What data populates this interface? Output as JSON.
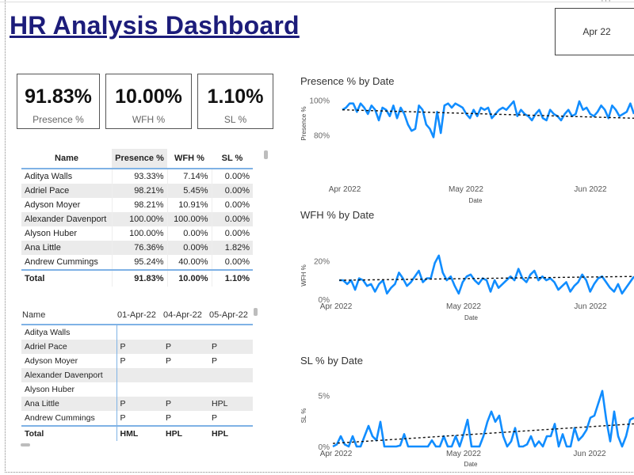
{
  "title": "HR Analysis Dashboard",
  "slicer_value": "Apr 22",
  "kpis": [
    {
      "value": "91.83%",
      "label": "Presence %"
    },
    {
      "value": "10.00%",
      "label": "WFH %"
    },
    {
      "value": "1.10%",
      "label": "SL %"
    }
  ],
  "table1": {
    "headers": [
      "Name",
      "Presence %",
      "WFH %",
      "SL %"
    ],
    "rows": [
      [
        "Aditya Walls",
        "93.33%",
        "7.14%",
        "0.00%"
      ],
      [
        "Adriel Pace",
        "98.21%",
        "5.45%",
        "0.00%"
      ],
      [
        "Adyson Moyer",
        "98.21%",
        "10.91%",
        "0.00%"
      ],
      [
        "Alexander Davenport",
        "100.00%",
        "100.00%",
        "0.00%"
      ],
      [
        "Alyson Huber",
        "100.00%",
        "0.00%",
        "0.00%"
      ],
      [
        "Ana Little",
        "76.36%",
        "0.00%",
        "1.82%"
      ],
      [
        "Andrew Cummings",
        "95.24%",
        "40.00%",
        "0.00%"
      ]
    ],
    "total": [
      "Total",
      "91.83%",
      "10.00%",
      "1.10%"
    ]
  },
  "table2": {
    "headers": [
      "Name",
      "01-Apr-22",
      "04-Apr-22",
      "05-Apr-22"
    ],
    "rows": [
      [
        "Aditya Walls",
        "",
        "",
        ""
      ],
      [
        "Adriel Pace",
        "P",
        "P",
        "P"
      ],
      [
        "Adyson Moyer",
        "P",
        "P",
        "P"
      ],
      [
        "Alexander Davenport",
        "",
        "",
        ""
      ],
      [
        "Alyson Huber",
        "",
        "",
        ""
      ],
      [
        "Ana Little",
        "P",
        "P",
        "HPL"
      ],
      [
        "Andrew Cummings",
        "P",
        "P",
        "P"
      ]
    ],
    "total": [
      "Total",
      "HML",
      "HPL",
      "HPL"
    ]
  },
  "chart_data": [
    {
      "type": "line",
      "title": "Presence % by Date",
      "xlabel": "Date",
      "ylabel": "Presence %",
      "x_ticks": [
        "Apr 2022",
        "May 2022",
        "Jun 2022"
      ],
      "y_ticks": [
        "100%",
        "80%"
      ],
      "ylim": [
        75,
        102
      ],
      "trend": [
        95,
        91
      ],
      "values": [
        95,
        96,
        98,
        98,
        94,
        98,
        96,
        93,
        97,
        95,
        90,
        96,
        95,
        92,
        97,
        91,
        96,
        93,
        88,
        85,
        86,
        97,
        95,
        88,
        86,
        82,
        94,
        84,
        97,
        98,
        96,
        98,
        97,
        96,
        93,
        91,
        95,
        92,
        96,
        95,
        96,
        91,
        93,
        95,
        96,
        95,
        97,
        99,
        92,
        95,
        93,
        92,
        90,
        93,
        95,
        91,
        90,
        95,
        93,
        92,
        90,
        93,
        95,
        92,
        93,
        99,
        95,
        96,
        93,
        92,
        94,
        97,
        95,
        91,
        97,
        95,
        92,
        93,
        94,
        98,
        93
      ]
    },
    {
      "type": "line",
      "title": "WFH % by Date",
      "xlabel": "Date",
      "ylabel": "WFH %",
      "x_ticks": [
        "Apr 2022",
        "May 2022",
        "Jun 2022"
      ],
      "y_ticks": [
        "20%",
        "0%"
      ],
      "ylim": [
        0,
        25
      ],
      "trend": [
        10,
        12
      ],
      "values": [
        10,
        10,
        8,
        10,
        5,
        11,
        10,
        7,
        8,
        4,
        8,
        10,
        3,
        6,
        8,
        14,
        11,
        7,
        9,
        12,
        15,
        9,
        11,
        11,
        19,
        23,
        14,
        10,
        12,
        7,
        3,
        9,
        12,
        13,
        10,
        8,
        11,
        10,
        4,
        10,
        6,
        8,
        10,
        12,
        10,
        16,
        11,
        9,
        13,
        15,
        10,
        12,
        10,
        11,
        9,
        5,
        7,
        9,
        4,
        7,
        9,
        13,
        10,
        4,
        8,
        11,
        12,
        9,
        6,
        4,
        8,
        3,
        6,
        9,
        12
      ]
    },
    {
      "type": "line",
      "title": "SL % by Date",
      "xlabel": "Date",
      "ylabel": "SL %",
      "x_ticks": [
        "Apr 2022",
        "May 2022",
        "Jun 2022"
      ],
      "y_ticks": [
        "5%",
        "0%"
      ],
      "ylim": [
        0,
        6
      ],
      "trend": [
        0.3,
        2.2
      ],
      "values": [
        0,
        0.2,
        1,
        0.2,
        0,
        1,
        0,
        0,
        1,
        2,
        1,
        0.6,
        2.4,
        0,
        0,
        0,
        0,
        0.1,
        1.2,
        0,
        0,
        0,
        0,
        0,
        0,
        0.6,
        0,
        0,
        1,
        0,
        0,
        1,
        0,
        1.2,
        2.6,
        0,
        0,
        0,
        1,
        2.4,
        3.4,
        2.4,
        3,
        1,
        0,
        0.5,
        1.8,
        0,
        0,
        0.2,
        1,
        0,
        0.5,
        0,
        1,
        1,
        2.2,
        0,
        1.2,
        0,
        0,
        1.8,
        0.6,
        1,
        1.6,
        2.8,
        3,
        4.2,
        5.4,
        2.6,
        0.5,
        3.4,
        1,
        0,
        1,
        2.6,
        2.8
      ]
    }
  ]
}
